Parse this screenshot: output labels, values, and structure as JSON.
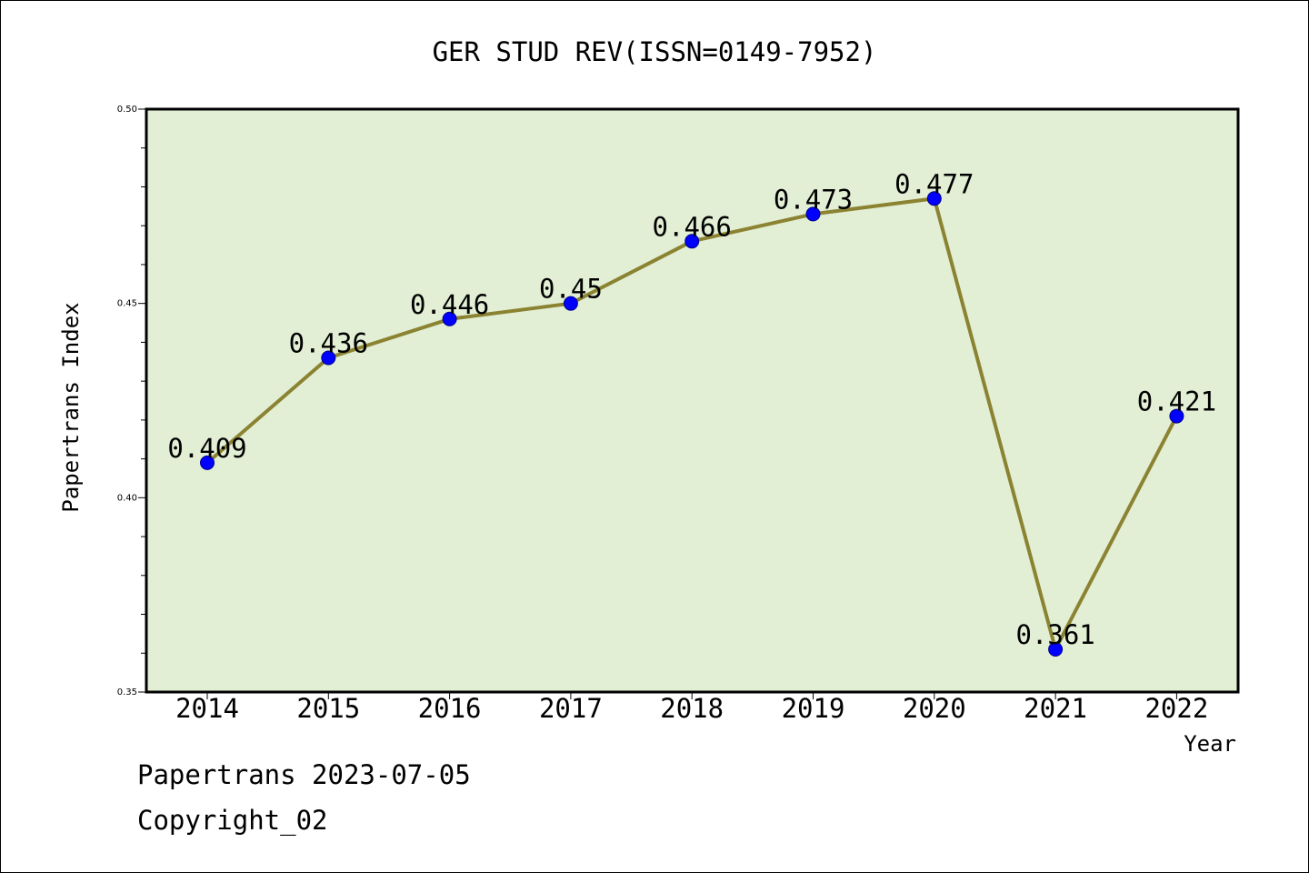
{
  "chart_data": {
    "type": "line",
    "title": "GER STUD REV(ISSN=0149-7952)",
    "xlabel": "Year",
    "ylabel": "Papertrans Index",
    "categories": [
      "2014",
      "2015",
      "2016",
      "2017",
      "2018",
      "2019",
      "2020",
      "2021",
      "2022"
    ],
    "series": [
      {
        "values": [
          0.409,
          0.436,
          0.446,
          0.45,
          0.466,
          0.473,
          0.477,
          0.361,
          0.421
        ],
        "labels": [
          "0.409",
          "0.436",
          "0.446",
          "0.45",
          "0.466",
          "0.473",
          "0.477",
          "0.361",
          "0.421"
        ]
      }
    ],
    "ylim": [
      0.35,
      0.5
    ],
    "yticks": [
      0.35,
      0.4,
      0.45,
      0.5
    ],
    "ytick_labels": [
      "0.35",
      "0.40",
      "0.45",
      "0.50"
    ],
    "grid": false,
    "colors": {
      "plot_background": "#e2efd5",
      "line": "#8b8332",
      "marker": "#0000ff",
      "axes": "#000000"
    }
  },
  "footer": {
    "line1": "Papertrans 2023-07-05",
    "line2": "Copyright_02"
  }
}
